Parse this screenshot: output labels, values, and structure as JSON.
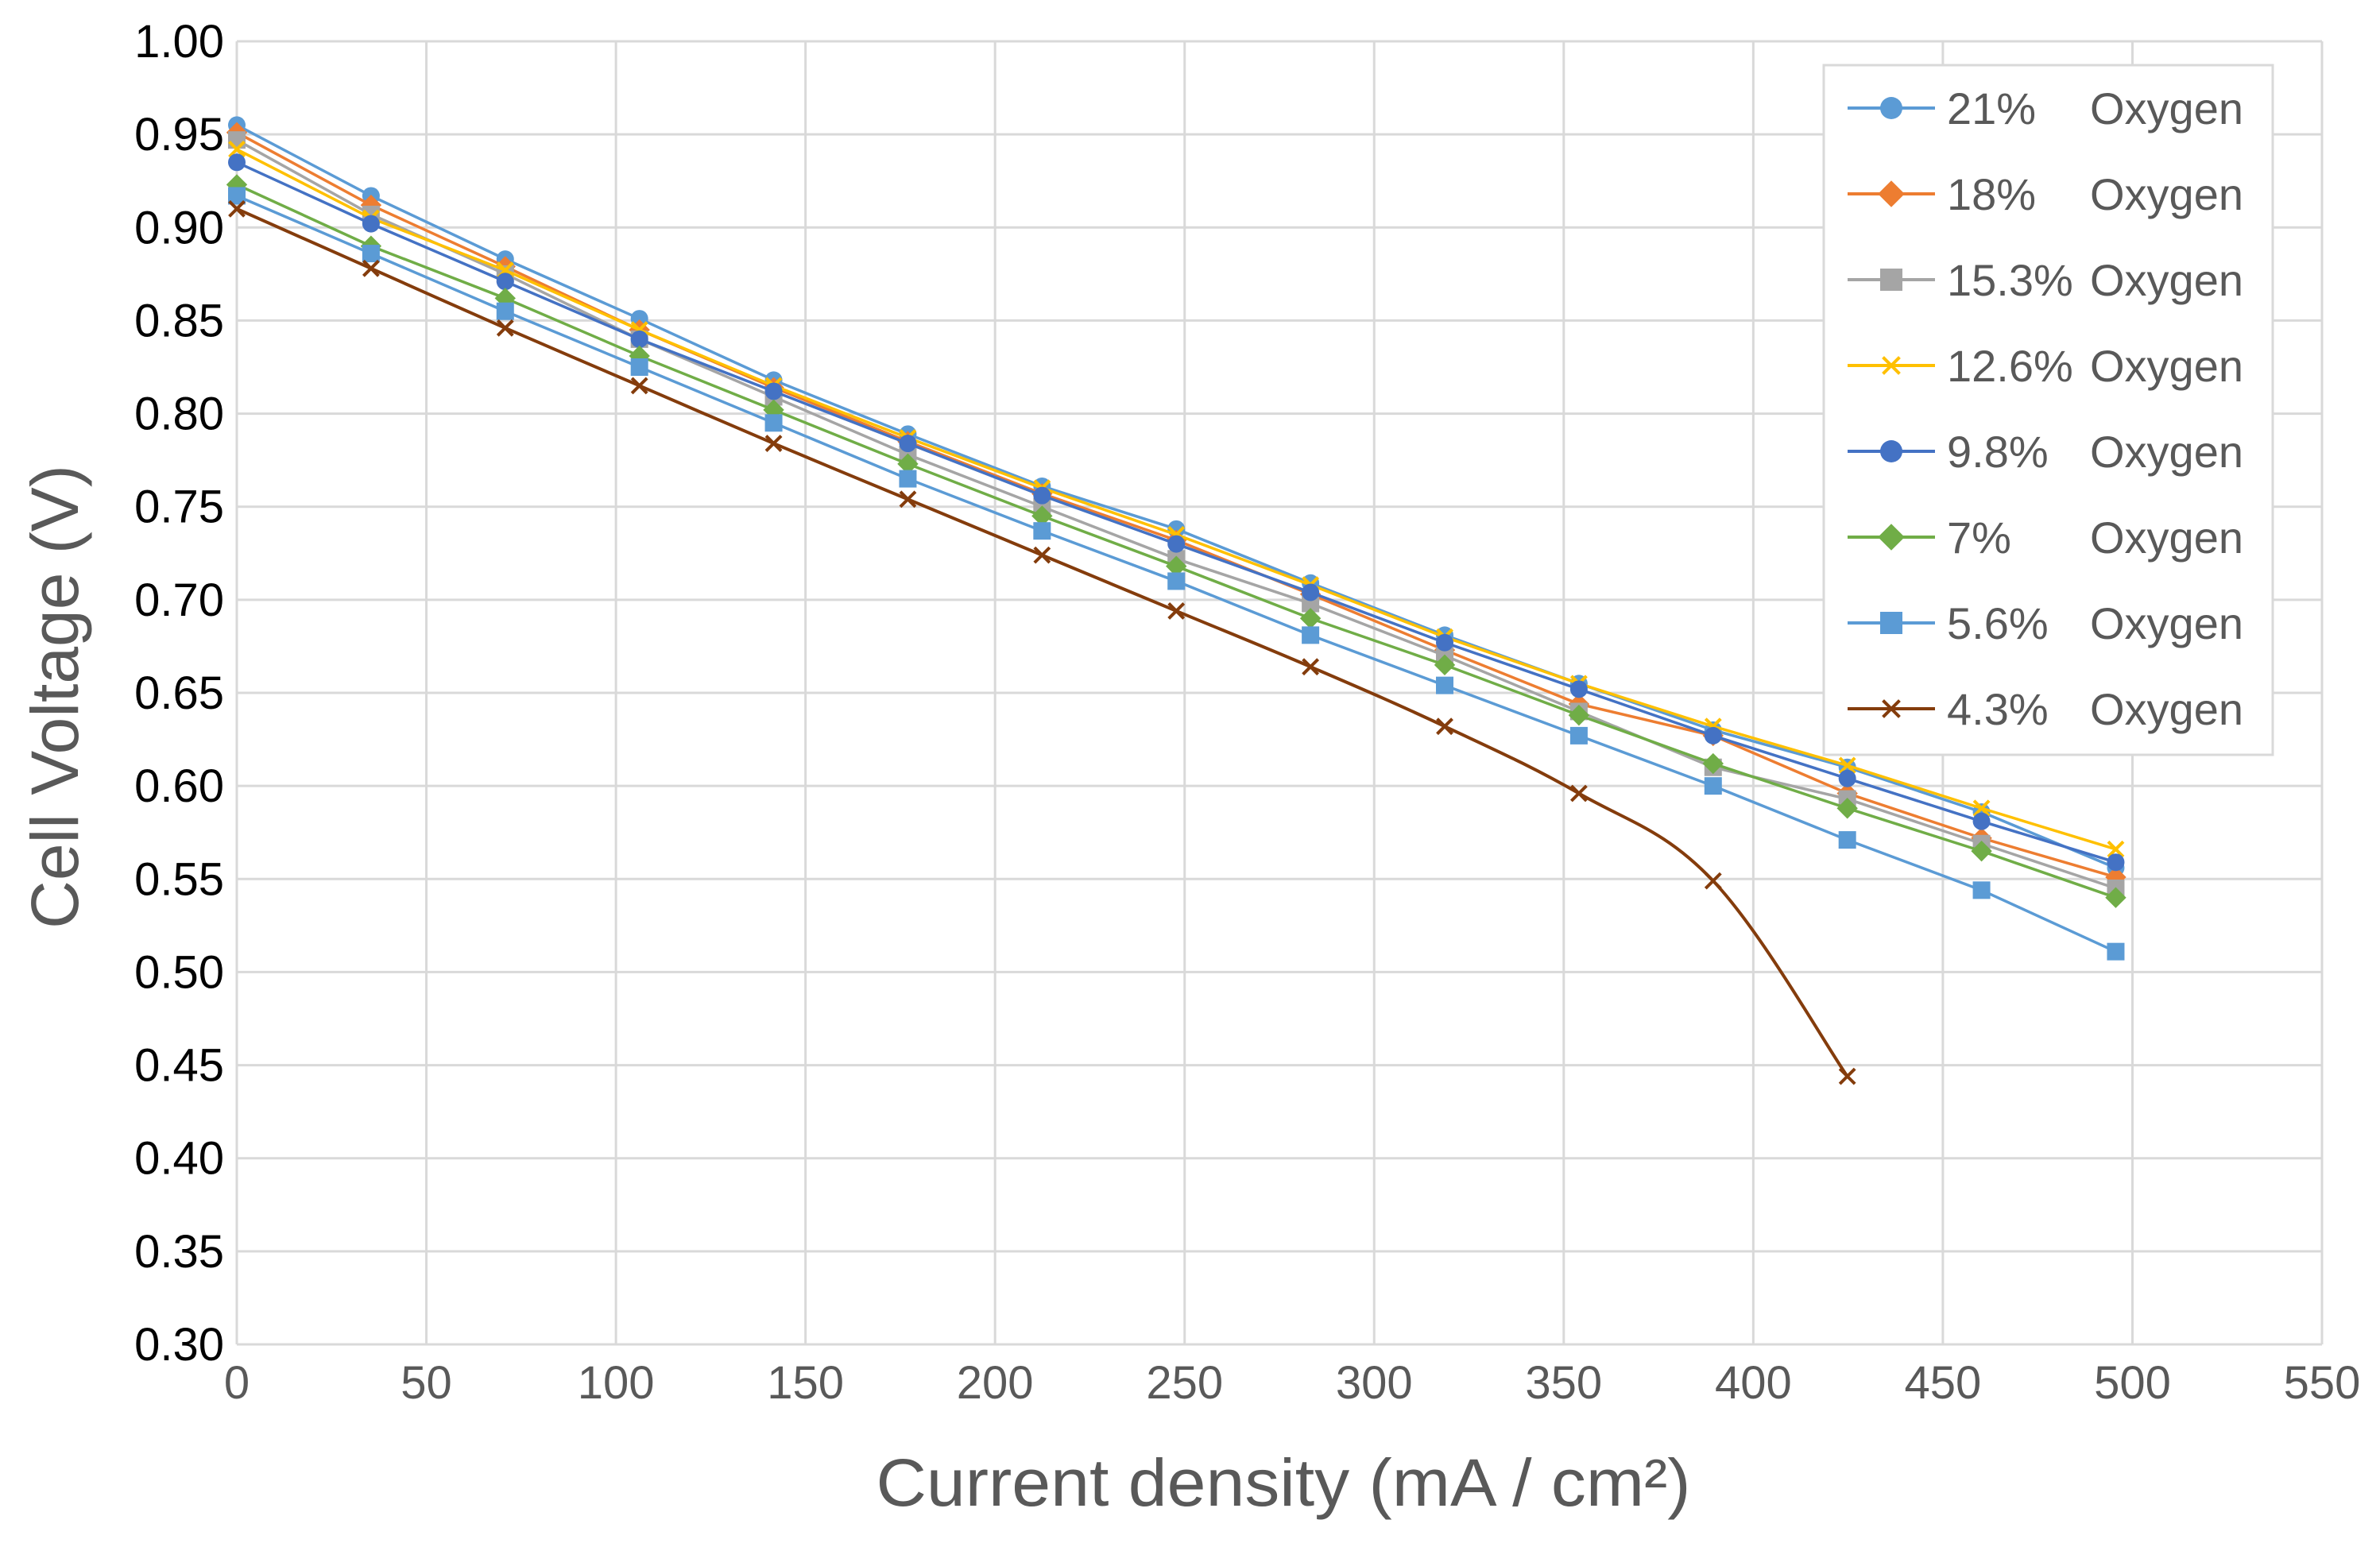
{
  "chart_data": {
    "type": "line",
    "title": "",
    "xlabel": "Current density (mA / cm²)",
    "ylabel": "Cell Voltage (V)",
    "xlim": [
      0,
      550
    ],
    "ylim": [
      0.3,
      1.0
    ],
    "x_ticks": [
      "0",
      "50",
      "100",
      "150",
      "200",
      "250",
      "300",
      "350",
      "400",
      "450",
      "500",
      "550"
    ],
    "y_ticks": [
      "0.30",
      "0.35",
      "0.40",
      "0.45",
      "0.50",
      "0.55",
      "0.60",
      "0.65",
      "0.70",
      "0.75",
      "0.80",
      "0.85",
      "0.90",
      "0.95",
      "1.00"
    ],
    "grid": true,
    "legend_position": "top-right",
    "series": [
      {
        "name": "21%",
        "suffix": "Oxygen",
        "color": "#5B9BD5",
        "marker": "circle",
        "smooth": false,
        "x": [
          0,
          35.4,
          70.8,
          106.2,
          141.6,
          177,
          212.4,
          247.8,
          283.2,
          318.6,
          354,
          389.4,
          424.8,
          460.2,
          495.6
        ],
        "y": [
          0.955,
          0.917,
          0.883,
          0.851,
          0.818,
          0.789,
          0.761,
          0.738,
          0.709,
          0.681,
          0.655,
          0.63,
          0.61,
          0.586,
          0.556
        ]
      },
      {
        "name": "18%",
        "suffix": "Oxygen",
        "color": "#ED7D31",
        "marker": "diamond",
        "smooth": false,
        "x": [
          0,
          35.4,
          70.8,
          106.2,
          141.6,
          177,
          212.4,
          247.8,
          283.2,
          318.6,
          354,
          389.4,
          424.8,
          460.2,
          495.6
        ],
        "y": [
          0.951,
          0.912,
          0.879,
          0.845,
          0.814,
          0.785,
          0.757,
          0.732,
          0.703,
          0.673,
          0.644,
          0.627,
          0.596,
          0.572,
          0.551
        ]
      },
      {
        "name": "15.3%",
        "suffix": "Oxygen",
        "color": "#A5A5A5",
        "marker": "square",
        "smooth": false,
        "x": [
          0,
          35.4,
          70.8,
          106.2,
          141.6,
          177,
          212.4,
          247.8,
          283.2,
          318.6,
          354,
          389.4,
          424.8,
          460.2,
          495.6
        ],
        "y": [
          0.947,
          0.907,
          0.875,
          0.84,
          0.809,
          0.778,
          0.75,
          0.722,
          0.698,
          0.67,
          0.64,
          0.61,
          0.593,
          0.569,
          0.545
        ]
      },
      {
        "name": "12.6%",
        "suffix": "Oxygen",
        "color": "#FFC000",
        "marker": "x",
        "smooth": false,
        "x": [
          0,
          35.4,
          70.8,
          106.2,
          141.6,
          177,
          212.4,
          247.8,
          283.2,
          318.6,
          354,
          389.4,
          424.8,
          460.2,
          495.6
        ],
        "y": [
          0.942,
          0.905,
          0.877,
          0.845,
          0.815,
          0.787,
          0.76,
          0.735,
          0.708,
          0.68,
          0.655,
          0.632,
          0.611,
          0.588,
          0.566
        ]
      },
      {
        "name": "9.8%",
        "suffix": "Oxygen",
        "color": "#4472C4",
        "marker": "circle",
        "smooth": false,
        "x": [
          0,
          35.4,
          70.8,
          106.2,
          141.6,
          177,
          212.4,
          247.8,
          283.2,
          318.6,
          354,
          389.4,
          424.8,
          460.2,
          495.6
        ],
        "y": [
          0.935,
          0.902,
          0.871,
          0.84,
          0.812,
          0.784,
          0.756,
          0.73,
          0.704,
          0.677,
          0.652,
          0.627,
          0.604,
          0.581,
          0.559
        ]
      },
      {
        "name": "7%",
        "suffix": "Oxygen",
        "color": "#70AD47",
        "marker": "diamond",
        "smooth": false,
        "x": [
          0,
          35.4,
          70.8,
          106.2,
          141.6,
          177,
          212.4,
          247.8,
          283.2,
          318.6,
          354,
          389.4,
          424.8,
          460.2,
          495.6
        ],
        "y": [
          0.923,
          0.89,
          0.862,
          0.831,
          0.802,
          0.773,
          0.745,
          0.718,
          0.69,
          0.665,
          0.638,
          0.612,
          0.588,
          0.565,
          0.54
        ]
      },
      {
        "name": "5.6%",
        "suffix": "Oxygen",
        "color": "#5B9BD5",
        "marker": "square",
        "smooth": false,
        "x": [
          0,
          35.4,
          70.8,
          106.2,
          141.6,
          177,
          212.4,
          247.8,
          283.2,
          318.6,
          354,
          389.4,
          424.8,
          460.2,
          495.6
        ],
        "y": [
          0.917,
          0.886,
          0.855,
          0.825,
          0.795,
          0.765,
          0.737,
          0.71,
          0.681,
          0.654,
          0.627,
          0.6,
          0.571,
          0.544,
          0.511
        ]
      },
      {
        "name": "4.3%",
        "suffix": "Oxygen",
        "color": "#843C0C",
        "marker": "x",
        "smooth": true,
        "x": [
          0,
          35.4,
          70.8,
          106.2,
          141.6,
          177,
          212.4,
          247.8,
          283.2,
          318.6,
          354,
          389.4,
          424.8
        ],
        "y": [
          0.91,
          0.878,
          0.846,
          0.815,
          0.784,
          0.754,
          0.724,
          0.694,
          0.664,
          0.632,
          0.596,
          0.549,
          0.444
        ]
      }
    ]
  }
}
